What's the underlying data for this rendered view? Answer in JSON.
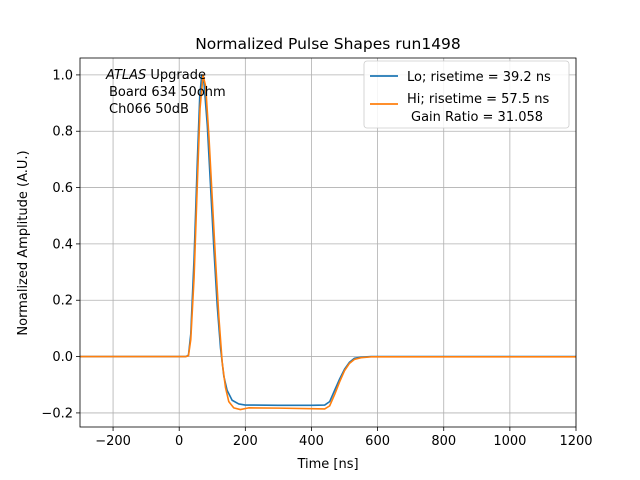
{
  "chart_data": {
    "type": "line",
    "title": "Normalized Pulse Shapes run1498",
    "xlabel": "Time [ns]",
    "ylabel": "Normalized Amplitude (A.U.)",
    "xlim": [
      -300,
      1200
    ],
    "ylim": [
      -0.25,
      1.06
    ],
    "xticks": [
      -200,
      0,
      200,
      400,
      600,
      800,
      1000,
      1200
    ],
    "xtick_labels": [
      "−200",
      "0",
      "200",
      "400",
      "600",
      "800",
      "1000",
      "1200"
    ],
    "yticks": [
      -0.2,
      0.0,
      0.2,
      0.4,
      0.6,
      0.8,
      1.0
    ],
    "ytick_labels": [
      "−0.2",
      "0.0",
      "0.2",
      "0.4",
      "0.6",
      "0.8",
      "1.0"
    ],
    "grid": true,
    "legend_position": "top-right",
    "annotation": {
      "line1_italic": "ATLAS",
      "line1_rest": " Upgrade",
      "line2": "Board 634 50ohm",
      "line3": "Ch066 50dB"
    },
    "series": [
      {
        "name": "Lo; risetime = 39.2 ns",
        "color": "#1f77b4",
        "points": [
          [
            -300,
            0.0
          ],
          [
            20,
            0.0
          ],
          [
            28,
            0.005
          ],
          [
            35,
            0.08
          ],
          [
            45,
            0.35
          ],
          [
            55,
            0.7
          ],
          [
            62,
            0.92
          ],
          [
            68,
            1.0
          ],
          [
            75,
            0.97
          ],
          [
            85,
            0.82
          ],
          [
            95,
            0.6
          ],
          [
            105,
            0.38
          ],
          [
            115,
            0.18
          ],
          [
            125,
            0.03
          ],
          [
            135,
            -0.07
          ],
          [
            145,
            -0.12
          ],
          [
            160,
            -0.155
          ],
          [
            180,
            -0.168
          ],
          [
            200,
            -0.172
          ],
          [
            300,
            -0.173
          ],
          [
            400,
            -0.173
          ],
          [
            440,
            -0.172
          ],
          [
            455,
            -0.16
          ],
          [
            470,
            -0.12
          ],
          [
            485,
            -0.08
          ],
          [
            500,
            -0.045
          ],
          [
            515,
            -0.02
          ],
          [
            530,
            -0.006
          ],
          [
            550,
            -0.002
          ],
          [
            580,
            0.0
          ],
          [
            1200,
            0.0
          ]
        ]
      },
      {
        "name": "Hi; risetime = 57.5 ns",
        "name_line2": "Gain Ratio = 31.058",
        "color": "#ff7f0e",
        "points": [
          [
            -300,
            0.0
          ],
          [
            20,
            0.0
          ],
          [
            28,
            0.003
          ],
          [
            35,
            0.06
          ],
          [
            45,
            0.28
          ],
          [
            55,
            0.62
          ],
          [
            63,
            0.88
          ],
          [
            72,
            1.0
          ],
          [
            80,
            0.96
          ],
          [
            90,
            0.78
          ],
          [
            100,
            0.56
          ],
          [
            110,
            0.34
          ],
          [
            120,
            0.14
          ],
          [
            130,
            -0.02
          ],
          [
            140,
            -0.11
          ],
          [
            150,
            -0.16
          ],
          [
            165,
            -0.182
          ],
          [
            185,
            -0.188
          ],
          [
            210,
            -0.182
          ],
          [
            300,
            -0.183
          ],
          [
            400,
            -0.185
          ],
          [
            440,
            -0.186
          ],
          [
            455,
            -0.175
          ],
          [
            470,
            -0.135
          ],
          [
            485,
            -0.09
          ],
          [
            500,
            -0.05
          ],
          [
            515,
            -0.024
          ],
          [
            530,
            -0.01
          ],
          [
            550,
            -0.004
          ],
          [
            580,
            -0.001
          ],
          [
            1200,
            -0.001
          ]
        ]
      }
    ]
  }
}
